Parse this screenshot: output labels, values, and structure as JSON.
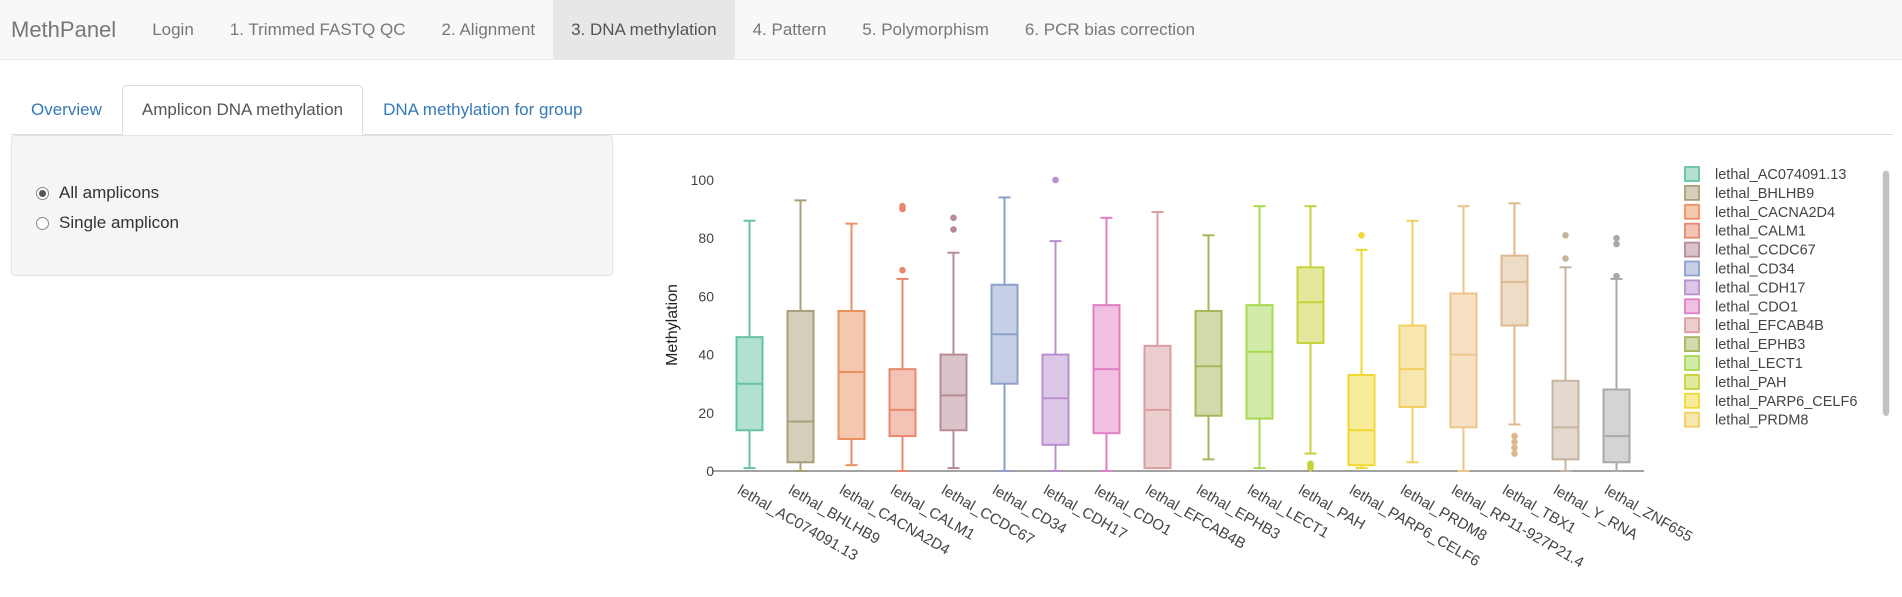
{
  "navbar": {
    "brand": "MethPanel",
    "items": [
      {
        "label": "Login",
        "active": false
      },
      {
        "label": "1. Trimmed FASTQ QC",
        "active": false
      },
      {
        "label": "2. Alignment",
        "active": false
      },
      {
        "label": "3. DNA methylation",
        "active": true
      },
      {
        "label": "4. Pattern",
        "active": false
      },
      {
        "label": "5. Polymorphism",
        "active": false
      },
      {
        "label": "6. PCR bias correction",
        "active": false
      }
    ]
  },
  "subtabs": [
    {
      "label": "Overview",
      "active": false
    },
    {
      "label": "Amplicon DNA methylation",
      "active": true
    },
    {
      "label": "DNA methylation for group",
      "active": false
    }
  ],
  "sidebar": {
    "options": [
      {
        "label": "All amplicons",
        "checked": true
      },
      {
        "label": "Single amplicon",
        "checked": false
      }
    ]
  },
  "chart_data": {
    "type": "box",
    "ylabel": "Methylation",
    "xlabel": "",
    "ylim": [
      0,
      100
    ],
    "yticks": [
      0,
      20,
      40,
      60,
      80,
      100
    ],
    "legend_position": "right",
    "categories": [
      "lethal_AC074091.13",
      "lethal_BHLHB9",
      "lethal_CACNA2D4",
      "lethal_CALM1",
      "lethal_CCDC67",
      "lethal_CD34",
      "lethal_CDH17",
      "lethal_CDO1",
      "lethal_EFCAB4B",
      "lethal_EPHB3",
      "lethal_LECT1",
      "lethal_PAH",
      "lethal_PARP6_CELF6",
      "lethal_PRDM8",
      "lethal_RP11-927P21.4",
      "lethal_TBX1",
      "lethal_Y_RNA",
      "lethal_ZNF655"
    ],
    "series": [
      {
        "name": "lethal_AC074091.13",
        "color": "#66c2a5",
        "min": 1,
        "q1": 14,
        "median": 30,
        "q3": 46,
        "max": 86,
        "outliers": []
      },
      {
        "name": "lethal_BHLHB9",
        "color": "#a89f78",
        "min": 0,
        "q1": 3,
        "median": 17,
        "q3": 55,
        "max": 93,
        "outliers": []
      },
      {
        "name": "lethal_CACNA2D4",
        "color": "#ea9160",
        "min": 2,
        "q1": 11,
        "median": 34,
        "q3": 55,
        "max": 85,
        "outliers": []
      },
      {
        "name": "lethal_CALM1",
        "color": "#e8886e",
        "min": 0,
        "q1": 12,
        "median": 21,
        "q3": 35,
        "max": 66,
        "outliers": [
          69,
          90,
          91
        ]
      },
      {
        "name": "lethal_CCDC67",
        "color": "#b88a94",
        "min": 1,
        "q1": 14,
        "median": 26,
        "q3": 40,
        "max": 75,
        "outliers": [
          83,
          87
        ]
      },
      {
        "name": "lethal_CD34",
        "color": "#8da0cb",
        "min": 0,
        "q1": 30,
        "median": 47,
        "q3": 64,
        "max": 94,
        "outliers": []
      },
      {
        "name": "lethal_CDH17",
        "color": "#b98fd0",
        "min": 0,
        "q1": 9,
        "median": 25,
        "q3": 40,
        "max": 79,
        "outliers": [
          100
        ]
      },
      {
        "name": "lethal_CDO1",
        "color": "#e17fc3",
        "min": 0,
        "q1": 13,
        "median": 35,
        "q3": 57,
        "max": 87,
        "outliers": []
      },
      {
        "name": "lethal_EFCAB4B",
        "color": "#d99ea0",
        "min": 1,
        "q1": 1,
        "median": 21,
        "q3": 43,
        "max": 89,
        "outliers": []
      },
      {
        "name": "lethal_EPHB3",
        "color": "#a6b65a",
        "min": 4,
        "q1": 19,
        "median": 36,
        "q3": 55,
        "max": 81,
        "outliers": []
      },
      {
        "name": "lethal_LECT1",
        "color": "#a6d854",
        "min": 1,
        "q1": 18,
        "median": 41,
        "q3": 57,
        "max": 91,
        "outliers": []
      },
      {
        "name": "lethal_PAH",
        "color": "#c7d23a",
        "min": 6,
        "q1": 44,
        "median": 58,
        "q3": 70,
        "max": 91,
        "outliers": [
          1,
          1.5,
          2,
          2.5
        ]
      },
      {
        "name": "lethal_PARP6_CELF6",
        "color": "#f2d834",
        "min": 1,
        "q1": 2,
        "median": 14,
        "q3": 33,
        "max": 76,
        "outliers": [
          81
        ]
      },
      {
        "name": "lethal_PRDM8",
        "color": "#f0d060",
        "min": 3,
        "q1": 22,
        "median": 35,
        "q3": 50,
        "max": 86,
        "outliers": []
      },
      {
        "name": "lethal_RP11-927P21.4",
        "color": "#edc48a",
        "min": 0,
        "q1": 15,
        "median": 40,
        "q3": 61,
        "max": 91,
        "outliers": []
      },
      {
        "name": "lethal_TBX1",
        "color": "#deb990",
        "min": 16,
        "q1": 50,
        "median": 65,
        "q3": 74,
        "max": 92,
        "outliers": [
          6,
          8,
          10,
          12
        ]
      },
      {
        "name": "lethal_Y_RNA",
        "color": "#c8b49e",
        "min": 0,
        "q1": 4,
        "median": 15,
        "q3": 31,
        "max": 70,
        "outliers": [
          73,
          81
        ]
      },
      {
        "name": "lethal_ZNF655",
        "color": "#a9a9a9",
        "min": 0,
        "q1": 3,
        "median": 12,
        "q3": 28,
        "max": 66,
        "outliers": [
          67,
          78,
          80
        ]
      }
    ]
  }
}
